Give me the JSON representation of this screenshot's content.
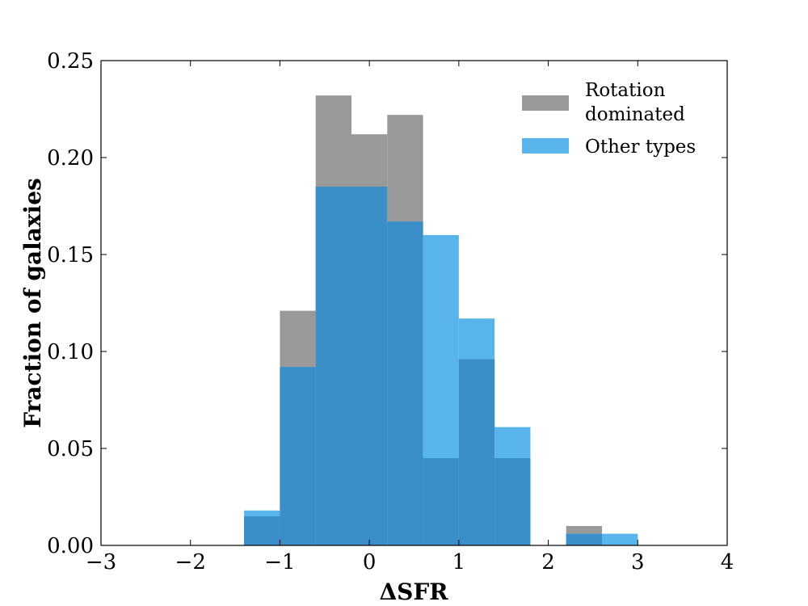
{
  "chart_data": {
    "type": "bar",
    "xlabel": "ΔSFR",
    "ylabel": "Fraction of galaxies",
    "xlim": [
      -3,
      4
    ],
    "ylim": [
      0,
      0.25
    ],
    "xticks": [
      "−3",
      "−2",
      "−1",
      "0",
      "1",
      "2",
      "3",
      "4"
    ],
    "yticks": [
      "0.00",
      "0.05",
      "0.10",
      "0.15",
      "0.20",
      "0.25"
    ],
    "bins": [
      [
        -1.4,
        -1.0
      ],
      [
        -1.0,
        -0.6
      ],
      [
        -0.6,
        -0.2
      ],
      [
        -0.2,
        0.2
      ],
      [
        0.2,
        0.6
      ],
      [
        0.6,
        1.0
      ],
      [
        1.0,
        1.4
      ],
      [
        1.4,
        1.8
      ],
      [
        1.8,
        2.2
      ],
      [
        2.2,
        2.6
      ],
      [
        2.6,
        3.0
      ]
    ],
    "legend_position": "top-right",
    "series": [
      {
        "name": "Rotation dominated",
        "color": "#999999",
        "values": [
          0.015,
          0.121,
          0.232,
          0.212,
          0.222,
          0.045,
          0.096,
          0.045,
          0.0,
          0.01,
          0.0
        ]
      },
      {
        "name": "Other types",
        "color": "#5ab4ec",
        "values": [
          0.018,
          0.092,
          0.185,
          0.185,
          0.167,
          0.16,
          0.117,
          0.061,
          0.0,
          0.006,
          0.006
        ]
      }
    ],
    "overlap_color": "#3b8fc8",
    "legend": [
      {
        "lines": [
          "Rotation",
          "dominated"
        ],
        "color": "#999999"
      },
      {
        "lines": [
          "Other types"
        ],
        "color": "#5ab4ec"
      }
    ]
  }
}
